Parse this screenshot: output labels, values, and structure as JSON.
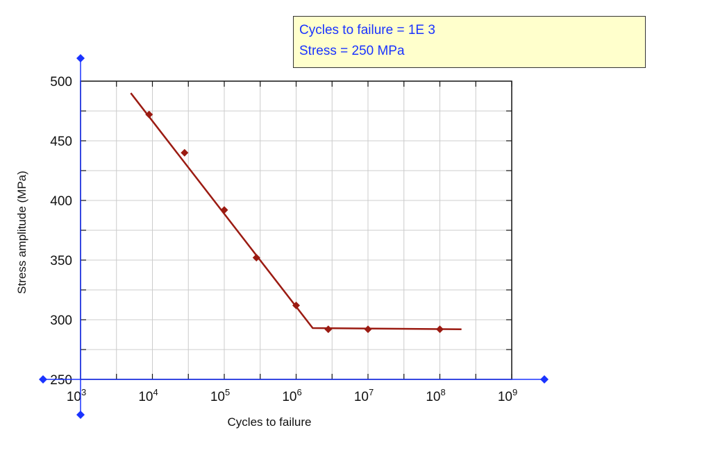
{
  "readout": {
    "cycles_label": "Cycles to failure = 1E 3",
    "stress_label": "Stress = 250 MPa"
  },
  "colors": {
    "series": "#9b1b12",
    "handle": "#1a33ff",
    "readout_text": "#1a33ff",
    "readout_bg": "#ffffcc",
    "grid": "#cccccc"
  },
  "chart_data": {
    "type": "scatter",
    "xlabel": "Cycles to failure",
    "ylabel": "Stress amplitude (MPa)",
    "x_scale": "log",
    "xlim": [
      1000,
      1000000000
    ],
    "ylim": [
      250,
      500
    ],
    "x_ticks": [
      {
        "base": "10",
        "exp": "3",
        "value": 1000
      },
      {
        "base": "10",
        "exp": "4",
        "value": 10000
      },
      {
        "base": "10",
        "exp": "5",
        "value": 100000
      },
      {
        "base": "10",
        "exp": "6",
        "value": 1000000
      },
      {
        "base": "10",
        "exp": "7",
        "value": 10000000
      },
      {
        "base": "10",
        "exp": "8",
        "value": 100000000
      },
      {
        "base": "10",
        "exp": "9",
        "value": 1000000000
      }
    ],
    "y_ticks": [
      "250",
      "300",
      "350",
      "400",
      "450",
      "500"
    ],
    "grid": true,
    "points": [
      {
        "x": 9000,
        "y": 472
      },
      {
        "x": 28000,
        "y": 440
      },
      {
        "x": 100000,
        "y": 392
      },
      {
        "x": 280000,
        "y": 352
      },
      {
        "x": 1000000,
        "y": 312
      },
      {
        "x": 2800000,
        "y": 292
      },
      {
        "x": 10000000,
        "y": 292
      },
      {
        "x": 100000000,
        "y": 292
      }
    ],
    "fit_line": [
      {
        "x": 5000,
        "y": 490
      },
      {
        "x": 1700000,
        "y": 293
      },
      {
        "x": 200000000,
        "y": 292
      }
    ]
  }
}
